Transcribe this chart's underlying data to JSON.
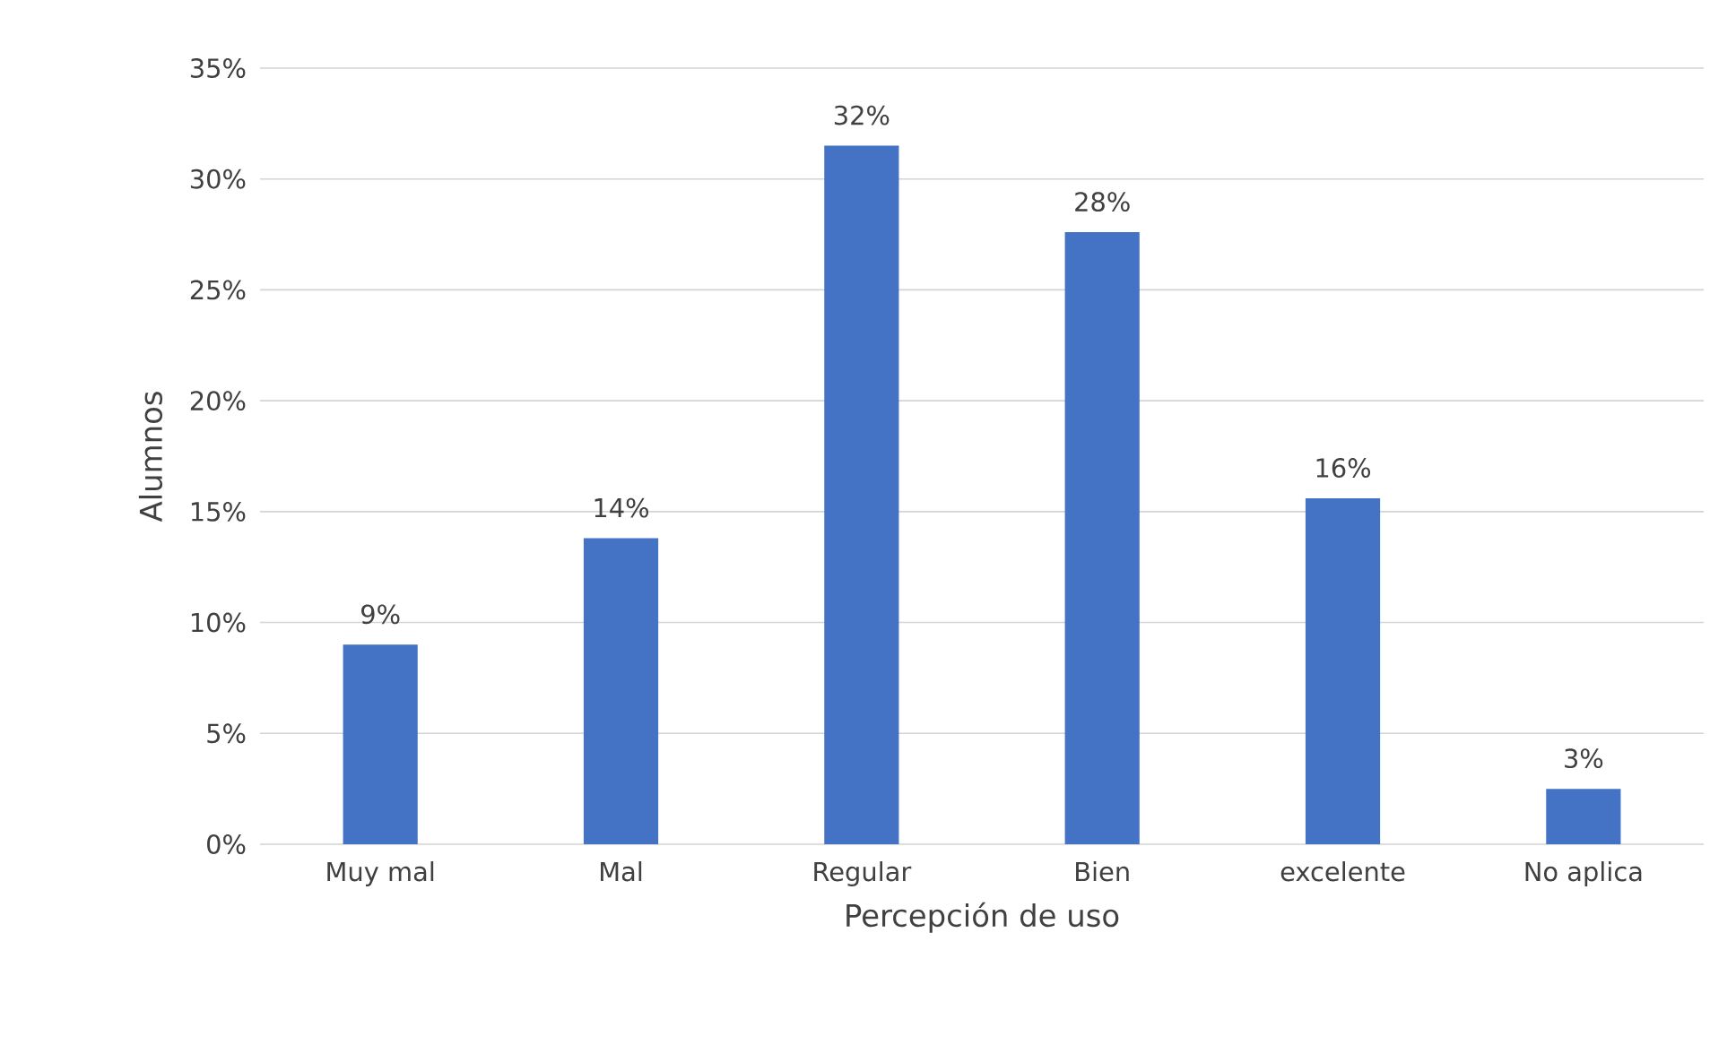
{
  "chart_data": {
    "type": "bar",
    "xlabel": "Percepción de uso",
    "ylabel": "Alumnos",
    "categories": [
      "Muy mal",
      "Mal",
      "Regular",
      "Bien",
      "excelente",
      "No aplica"
    ],
    "values": [
      9.0,
      13.8,
      31.5,
      27.6,
      15.6,
      2.5
    ],
    "value_labels": [
      "9%",
      "14%",
      "32%",
      "28%",
      "16%",
      "3%"
    ],
    "color": "#4472c4",
    "ylim": [
      0,
      35
    ],
    "yticks": [
      {
        "value": 0,
        "label": "0%"
      },
      {
        "value": 5,
        "label": "5%"
      },
      {
        "value": 10,
        "label": "10%"
      },
      {
        "value": 15,
        "label": "15%"
      },
      {
        "value": 20,
        "label": "20%"
      },
      {
        "value": 25,
        "label": "25%"
      },
      {
        "value": 30,
        "label": "30%"
      },
      {
        "value": 35,
        "label": "35%"
      }
    ],
    "grid": "y"
  }
}
